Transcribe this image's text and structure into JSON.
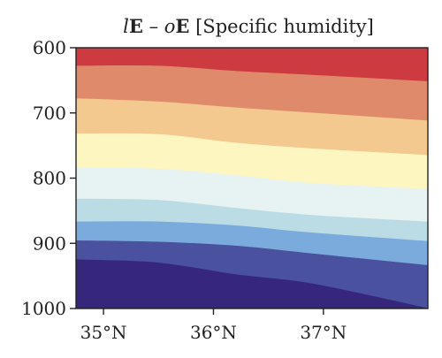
{
  "chart_data": {
    "type": "contourf",
    "title": {
      "italic_a": "l",
      "bold_a": "E",
      "separator": " – ",
      "italic_b": "o",
      "bold_b": "E",
      "rest": " [Specific humidity]"
    },
    "xlabel": "",
    "ylabel": "",
    "x_ticks": [
      {
        "value": 35,
        "label": "35°N"
      },
      {
        "value": 36,
        "label": "36°N"
      },
      {
        "value": 37,
        "label": "37°N"
      }
    ],
    "y_ticks": [
      {
        "value": 600,
        "label": "600"
      },
      {
        "value": 700,
        "label": "700"
      },
      {
        "value": 800,
        "label": "800"
      },
      {
        "value": 900,
        "label": "900"
      },
      {
        "value": 1000,
        "label": "1000"
      }
    ],
    "xlim": [
      34.75,
      37.95
    ],
    "ylim": [
      1000,
      600
    ],
    "y_inverted": true,
    "grid": false,
    "legend": "none",
    "band_x": [
      34.75,
      35.5,
      36.2,
      36.9,
      37.95
    ],
    "band_boundaries": [
      [
        628,
        628,
        636,
        642,
        652
      ],
      [
        678,
        683,
        692,
        700,
        712
      ],
      [
        732,
        733,
        746,
        755,
        765
      ],
      [
        784,
        786,
        796,
        808,
        817
      ],
      [
        832,
        834,
        846,
        857,
        867
      ],
      [
        867,
        867,
        873,
        884,
        897
      ],
      [
        896,
        898,
        904,
        916,
        934
      ],
      [
        925,
        930,
        948,
        962,
        1000
      ]
    ],
    "band_colors": [
      "#cd3a3f",
      "#de8a6b",
      "#f3c98f",
      "#fdf6c0",
      "#e7f2f3",
      "#bcdce5",
      "#7aabdc",
      "#4a519e",
      "#36277d"
    ]
  }
}
